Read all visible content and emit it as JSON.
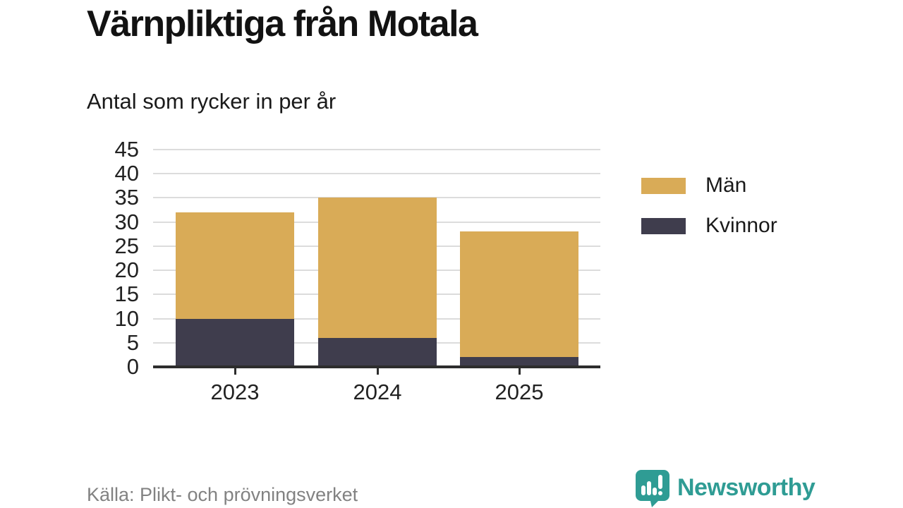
{
  "header": {
    "title": "Värnpliktiga från Motala",
    "subtitle": "Antal som rycker in per år"
  },
  "chart_data": {
    "type": "bar",
    "stacked": true,
    "title": "Värnpliktiga från Motala",
    "subtitle": "Antal som rycker in per år",
    "categories": [
      "2023",
      "2024",
      "2025"
    ],
    "series": [
      {
        "name": "Män",
        "values": [
          22,
          29,
          26
        ],
        "color": "#D9AB57"
      },
      {
        "name": "Kvinnor",
        "values": [
          10,
          6,
          2
        ],
        "color": "#3F3D4D"
      }
    ],
    "stack_order_bottom_to_top": [
      "Kvinnor",
      "Män"
    ],
    "totals": [
      32,
      35,
      28
    ],
    "xlabel": "",
    "ylabel": "",
    "ylim": [
      0,
      45
    ],
    "ytick_step": 5,
    "yticks": [
      0,
      5,
      10,
      15,
      20,
      25,
      30,
      35,
      40,
      45
    ],
    "grid": true,
    "legend_position": "right"
  },
  "footer": {
    "source": "Källa: Plikt- och prövningsverket",
    "brand": "Newsworthy"
  },
  "colors": {
    "men_gold": "#D9AB57",
    "women_dark": "#3F3D4D",
    "brand_teal": "#2F9C94",
    "grid_gray": "#DCDCDC",
    "axis_dark": "#2D2D2D",
    "text_dark": "#1A1A1A",
    "source_gray": "#828282",
    "background": "#FFFFFF"
  }
}
